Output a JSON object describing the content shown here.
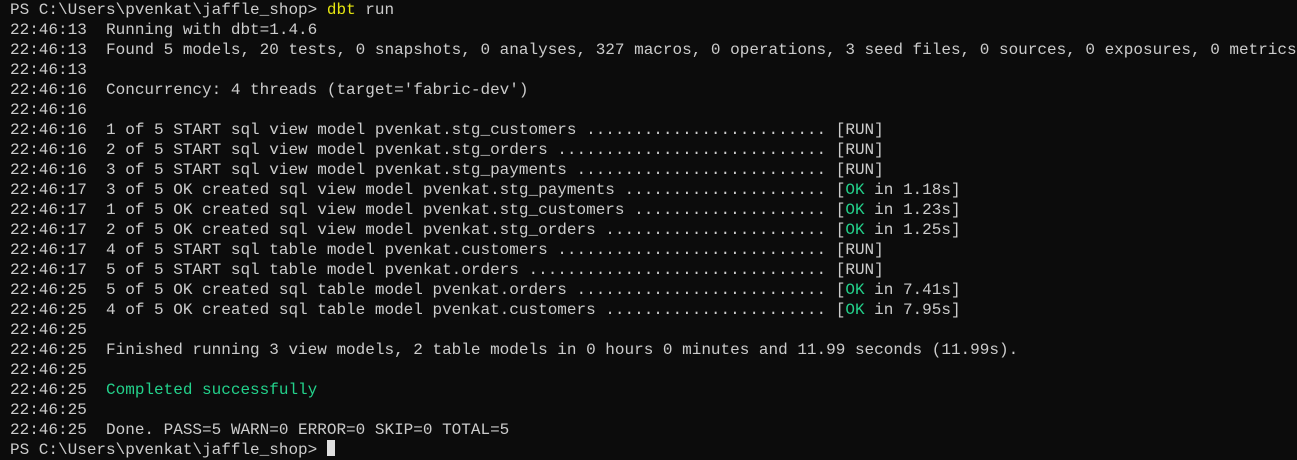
{
  "terminal": {
    "lines": [
      {
        "segments": [
          {
            "text": "PS C:\\Users\\pvenkat\\jaffle_shop> "
          },
          {
            "text": "dbt",
            "color": "#e5e510"
          },
          {
            "text": " run"
          }
        ]
      },
      {
        "segments": [
          {
            "text": "22:46:13  Running with dbt=1.4.6"
          }
        ]
      },
      {
        "segments": [
          {
            "text": "22:46:13  Found 5 models, 20 tests, 0 snapshots, 0 analyses, 327 macros, 0 operations, 3 seed files, 0 sources, 0 exposures, 0 metrics"
          }
        ]
      },
      {
        "segments": [
          {
            "text": "22:46:13"
          }
        ]
      },
      {
        "segments": [
          {
            "text": "22:46:16  Concurrency: 4 threads (target='fabric-dev')"
          }
        ]
      },
      {
        "segments": [
          {
            "text": "22:46:16"
          }
        ]
      },
      {
        "segments": [
          {
            "text": "22:46:16  1 of 5 START sql view model pvenkat.stg_customers ......................... [RUN]"
          }
        ]
      },
      {
        "segments": [
          {
            "text": "22:46:16  2 of 5 START sql view model pvenkat.stg_orders ............................ [RUN]"
          }
        ]
      },
      {
        "segments": [
          {
            "text": "22:46:16  3 of 5 START sql view model pvenkat.stg_payments .......................... [RUN]"
          }
        ]
      },
      {
        "segments": [
          {
            "text": "22:46:17  3 of 5 OK created sql view model pvenkat.stg_payments ..................... ["
          },
          {
            "text": "OK",
            "color": "#23d18b"
          },
          {
            "text": " in 1.18s]"
          }
        ]
      },
      {
        "segments": [
          {
            "text": "22:46:17  1 of 5 OK created sql view model pvenkat.stg_customers .................... ["
          },
          {
            "text": "OK",
            "color": "#23d18b"
          },
          {
            "text": " in 1.23s]"
          }
        ]
      },
      {
        "segments": [
          {
            "text": "22:46:17  2 of 5 OK created sql view model pvenkat.stg_orders ....................... ["
          },
          {
            "text": "OK",
            "color": "#23d18b"
          },
          {
            "text": " in 1.25s]"
          }
        ]
      },
      {
        "segments": [
          {
            "text": "22:46:17  4 of 5 START sql table model pvenkat.customers ............................ [RUN]"
          }
        ]
      },
      {
        "segments": [
          {
            "text": "22:46:17  5 of 5 START sql table model pvenkat.orders ............................... [RUN]"
          }
        ]
      },
      {
        "segments": [
          {
            "text": "22:46:25  5 of 5 OK created sql table model pvenkat.orders .......................... ["
          },
          {
            "text": "OK",
            "color": "#23d18b"
          },
          {
            "text": " in 7.41s]"
          }
        ]
      },
      {
        "segments": [
          {
            "text": "22:46:25  4 of 5 OK created sql table model pvenkat.customers ....................... ["
          },
          {
            "text": "OK",
            "color": "#23d18b"
          },
          {
            "text": " in 7.95s]"
          }
        ]
      },
      {
        "segments": [
          {
            "text": "22:46:25"
          }
        ]
      },
      {
        "segments": [
          {
            "text": "22:46:25  Finished running 3 view models, 2 table models in 0 hours 0 minutes and 11.99 seconds (11.99s)."
          }
        ]
      },
      {
        "segments": [
          {
            "text": "22:46:25"
          }
        ]
      },
      {
        "segments": [
          {
            "text": "22:46:25  "
          },
          {
            "text": "Completed successfully",
            "color": "#23d18b"
          }
        ]
      },
      {
        "segments": [
          {
            "text": "22:46:25"
          }
        ]
      },
      {
        "segments": [
          {
            "text": "22:46:25  Done. PASS=5 WARN=0 ERROR=0 SKIP=0 TOTAL=5"
          }
        ]
      },
      {
        "segments": [
          {
            "text": "PS C:\\Users\\pvenkat\\jaffle_shop> "
          }
        ]
      }
    ]
  }
}
